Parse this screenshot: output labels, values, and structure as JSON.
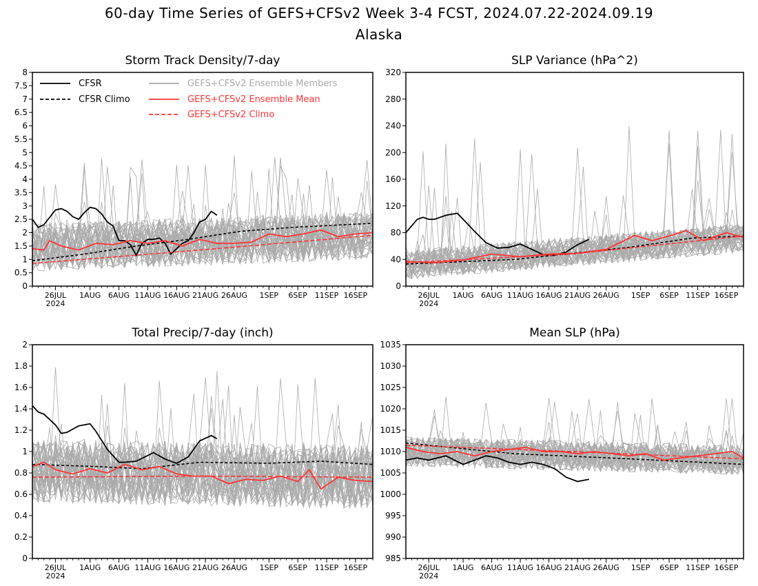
{
  "header": {
    "title_line1": "60-day Time Series of GEFS+CFSv2 Week 3-4 FCST, 2024.07.22-2024.09.19",
    "title_line2": "Alaska"
  },
  "colors": {
    "cfsr": "#000000",
    "members": "#aaaaaa",
    "ens_mean": "#ff3333"
  },
  "legend": {
    "cfsr": "CFSR",
    "cfsr_climo": "CFSR Climo",
    "members": "GEFS+CFSv2 Ensemble Members",
    "ens_mean": "GEFS+CFSv2 Ensemble Mean",
    "ens_climo": "GEFS+CFSv2 Climo"
  },
  "x_axis": {
    "start": "2024-07-22",
    "end": "2024-09-19",
    "ticks": [
      {
        "date": "2024-07-26",
        "label": "26JUL",
        "sub": "2024"
      },
      {
        "date": "2024-08-01",
        "label": "1AUG"
      },
      {
        "date": "2024-08-06",
        "label": "6AUG"
      },
      {
        "date": "2024-08-11",
        "label": "11AUG"
      },
      {
        "date": "2024-08-16",
        "label": "16AUG"
      },
      {
        "date": "2024-08-21",
        "label": "21AUG"
      },
      {
        "date": "2024-08-26",
        "label": "26AUG"
      },
      {
        "date": "2024-09-01",
        "label": "1SEP"
      },
      {
        "date": "2024-09-06",
        "label": "6SEP"
      },
      {
        "date": "2024-09-11",
        "label": "11SEP"
      },
      {
        "date": "2024-09-16",
        "label": "16SEP"
      }
    ]
  },
  "chart_data": [
    {
      "type": "line",
      "title": "Storm Track Density/7-day",
      "ylim": [
        0,
        8
      ],
      "yticks": [
        "0",
        "0.5",
        "1",
        "1.5",
        "2",
        "2.5",
        "3",
        "3.5",
        "4",
        "4.5",
        "5",
        "5.5",
        "6",
        "6.5",
        "7",
        "7.5",
        "8"
      ],
      "has_legend": true,
      "members_envelope": {
        "mean": [
          1.45,
          1.9
        ],
        "spread": 0.9,
        "max": 4.9
      },
      "series": [
        {
          "name": "CFSR",
          "x": [
            "2024-07-22",
            "2024-07-23",
            "2024-07-24",
            "2024-07-26",
            "2024-07-27",
            "2024-07-28",
            "2024-07-29",
            "2024-07-30",
            "2024-07-31",
            "2024-08-01",
            "2024-08-02",
            "2024-08-03",
            "2024-08-04",
            "2024-08-05",
            "2024-08-06",
            "2024-08-07",
            "2024-08-08",
            "2024-08-09",
            "2024-08-10",
            "2024-08-11",
            "2024-08-12",
            "2024-08-13",
            "2024-08-14",
            "2024-08-15",
            "2024-08-16",
            "2024-08-17",
            "2024-08-18",
            "2024-08-19",
            "2024-08-20",
            "2024-08-21",
            "2024-08-22",
            "2024-08-23"
          ],
          "y": [
            2.5,
            2.2,
            2.3,
            2.85,
            2.9,
            2.8,
            2.6,
            2.5,
            2.75,
            2.95,
            2.9,
            2.7,
            2.4,
            2.25,
            1.7,
            1.7,
            1.55,
            1.15,
            1.6,
            1.75,
            1.75,
            1.8,
            1.6,
            1.2,
            1.4,
            1.6,
            1.7,
            2.0,
            2.4,
            2.5,
            2.8,
            2.65
          ]
        },
        {
          "name": "CFSR Climo",
          "x": [
            "2024-07-22",
            "2024-07-31",
            "2024-08-09",
            "2024-08-18",
            "2024-08-27",
            "2024-09-05",
            "2024-09-19"
          ],
          "y": [
            0.95,
            1.2,
            1.5,
            1.75,
            2.05,
            2.2,
            2.35
          ]
        },
        {
          "name": "GEFS+CFSv2 Ensemble Mean",
          "x": [
            "2024-07-22",
            "2024-07-24",
            "2024-07-25",
            "2024-07-27",
            "2024-07-30",
            "2024-08-02",
            "2024-08-05",
            "2024-08-08",
            "2024-08-11",
            "2024-08-14",
            "2024-08-17",
            "2024-08-20",
            "2024-08-23",
            "2024-08-26",
            "2024-08-29",
            "2024-09-01",
            "2024-09-04",
            "2024-09-07",
            "2024-09-10",
            "2024-09-13",
            "2024-09-16",
            "2024-09-19"
          ],
          "y": [
            1.4,
            1.35,
            1.7,
            1.5,
            1.35,
            1.6,
            1.55,
            1.7,
            1.6,
            1.7,
            1.5,
            1.75,
            1.6,
            1.6,
            1.65,
            1.95,
            1.85,
            1.95,
            2.1,
            1.85,
            1.95,
            2.0
          ]
        },
        {
          "name": "GEFS+CFSv2 Climo",
          "x": [
            "2024-07-22",
            "2024-08-20",
            "2024-09-19"
          ],
          "y": [
            0.85,
            1.35,
            1.9
          ]
        }
      ]
    },
    {
      "type": "line",
      "title": "SLP Variance (hPa^2)",
      "ylim": [
        0,
        320
      ],
      "yticks": [
        "0",
        "40",
        "80",
        "120",
        "160",
        "200",
        "240",
        "280",
        "320"
      ],
      "has_legend": false,
      "members_envelope": {
        "mean": [
          32,
          72
        ],
        "spread": 22,
        "max": 240
      },
      "series": [
        {
          "name": "CFSR",
          "x": [
            "2024-07-22",
            "2024-07-24",
            "2024-07-25",
            "2024-07-26",
            "2024-07-27",
            "2024-07-29",
            "2024-07-31",
            "2024-08-01",
            "2024-08-03",
            "2024-08-05",
            "2024-08-07",
            "2024-08-09",
            "2024-08-11",
            "2024-08-13",
            "2024-08-15",
            "2024-08-17",
            "2024-08-19",
            "2024-08-21",
            "2024-08-23"
          ],
          "y": [
            80,
            100,
            103,
            100,
            100,
            106,
            109,
            100,
            82,
            65,
            57,
            58,
            63,
            55,
            47,
            46,
            51,
            62,
            70
          ]
        },
        {
          "name": "CFSR Climo",
          "x": [
            "2024-07-22",
            "2024-08-10",
            "2024-08-30",
            "2024-09-10",
            "2024-09-19"
          ],
          "y": [
            33,
            40,
            58,
            72,
            75
          ]
        },
        {
          "name": "GEFS+CFSv2 Ensemble Mean",
          "x": [
            "2024-07-22",
            "2024-07-27",
            "2024-08-01",
            "2024-08-06",
            "2024-08-11",
            "2024-08-16",
            "2024-08-21",
            "2024-08-26",
            "2024-08-31",
            "2024-09-03",
            "2024-09-06",
            "2024-09-09",
            "2024-09-12",
            "2024-09-16",
            "2024-09-19"
          ],
          "y": [
            37,
            35,
            39,
            48,
            44,
            48,
            49,
            55,
            76,
            68,
            75,
            83,
            68,
            80,
            73
          ]
        },
        {
          "name": "GEFS+CFSv2 Climo",
          "x": [
            "2024-07-22",
            "2024-08-20",
            "2024-09-19"
          ],
          "y": [
            35,
            48,
            75
          ]
        }
      ]
    },
    {
      "type": "line",
      "title": "Total Precip/7-day (inch)",
      "ylim": [
        0,
        2
      ],
      "yticks": [
        "0",
        "0.2",
        "0.4",
        "0.6",
        "0.8",
        "1",
        "1.2",
        "1.4",
        "1.6",
        "1.8",
        "2"
      ],
      "has_legend": false,
      "members_envelope": {
        "mean": [
          0.82,
          0.76
        ],
        "spread": 0.3,
        "max": 1.8
      },
      "series": [
        {
          "name": "CFSR",
          "x": [
            "2024-07-22",
            "2024-07-23",
            "2024-07-24",
            "2024-07-26",
            "2024-07-27",
            "2024-07-28",
            "2024-07-30",
            "2024-08-01",
            "2024-08-02",
            "2024-08-04",
            "2024-08-06",
            "2024-08-07",
            "2024-08-09",
            "2024-08-12",
            "2024-08-14",
            "2024-08-16",
            "2024-08-18",
            "2024-08-20",
            "2024-08-22",
            "2024-08-23"
          ],
          "y": [
            1.43,
            1.37,
            1.35,
            1.25,
            1.17,
            1.18,
            1.24,
            1.26,
            1.19,
            1.02,
            0.9,
            0.9,
            0.91,
            0.99,
            0.93,
            0.89,
            0.95,
            1.1,
            1.15,
            1.12
          ]
        },
        {
          "name": "CFSR Climo",
          "x": [
            "2024-07-22",
            "2024-08-02",
            "2024-08-10",
            "2024-08-20",
            "2024-09-01",
            "2024-09-10",
            "2024-09-19"
          ],
          "y": [
            0.88,
            0.86,
            0.84,
            0.9,
            0.89,
            0.91,
            0.88
          ]
        },
        {
          "name": "GEFS+CFSv2 Ensemble Mean",
          "x": [
            "2024-07-22",
            "2024-07-24",
            "2024-07-26",
            "2024-07-29",
            "2024-08-01",
            "2024-08-04",
            "2024-08-07",
            "2024-08-10",
            "2024-08-13",
            "2024-08-16",
            "2024-08-19",
            "2024-08-22",
            "2024-08-25",
            "2024-08-28",
            "2024-08-31",
            "2024-09-03",
            "2024-09-06",
            "2024-09-08",
            "2024-09-10",
            "2024-09-13",
            "2024-09-16",
            "2024-09-19"
          ],
          "y": [
            0.86,
            0.9,
            0.83,
            0.79,
            0.84,
            0.8,
            0.88,
            0.83,
            0.86,
            0.79,
            0.77,
            0.77,
            0.7,
            0.74,
            0.73,
            0.77,
            0.72,
            0.83,
            0.65,
            0.76,
            0.73,
            0.72
          ]
        },
        {
          "name": "GEFS+CFSv2 Climo",
          "x": [
            "2024-07-22",
            "2024-08-20",
            "2024-09-19"
          ],
          "y": [
            0.76,
            0.77,
            0.76
          ]
        }
      ]
    },
    {
      "type": "line",
      "title": "Mean SLP (hPa)",
      "ylim": [
        985,
        1035
      ],
      "yticks": [
        "985",
        "990",
        "995",
        "1000",
        "1005",
        "1010",
        "1015",
        "1020",
        "1025",
        "1030",
        "1035"
      ],
      "has_legend": false,
      "members_envelope": {
        "mean": [
          1010,
          1008
        ],
        "spread": 3.5,
        "max": 1023
      },
      "series": [
        {
          "name": "CFSR",
          "x": [
            "2024-07-22",
            "2024-07-24",
            "2024-07-26",
            "2024-07-29",
            "2024-08-01",
            "2024-08-03",
            "2024-08-05",
            "2024-08-07",
            "2024-08-09",
            "2024-08-11",
            "2024-08-13",
            "2024-08-15",
            "2024-08-17",
            "2024-08-19",
            "2024-08-21",
            "2024-08-23"
          ],
          "y": [
            1008,
            1008.5,
            1008,
            1009,
            1007,
            1008,
            1009,
            1008.5,
            1007.5,
            1007,
            1007.5,
            1007,
            1006,
            1004,
            1003,
            1003.5
          ]
        },
        {
          "name": "CFSR Climo",
          "x": [
            "2024-07-22",
            "2024-08-10",
            "2024-08-30",
            "2024-09-19"
          ],
          "y": [
            1012,
            1009.5,
            1008.3,
            1007
          ]
        },
        {
          "name": "GEFS+CFSv2 Ensemble Mean",
          "x": [
            "2024-07-22",
            "2024-07-25",
            "2024-07-28",
            "2024-07-31",
            "2024-08-03",
            "2024-08-06",
            "2024-08-09",
            "2024-08-12",
            "2024-08-15",
            "2024-08-18",
            "2024-08-21",
            "2024-08-24",
            "2024-08-27",
            "2024-08-30",
            "2024-09-02",
            "2024-09-05",
            "2024-09-08",
            "2024-09-11",
            "2024-09-14",
            "2024-09-17",
            "2024-09-19"
          ],
          "y": [
            1011,
            1010,
            1009.5,
            1010,
            1009,
            1010,
            1010.5,
            1011,
            1010,
            1010,
            1009.5,
            1010,
            1009.5,
            1009,
            1009.5,
            1008,
            1008.5,
            1009,
            1009.5,
            1010,
            1008.5
          ]
        },
        {
          "name": "GEFS+CFSv2 Climo",
          "x": [
            "2024-07-22",
            "2024-08-20",
            "2024-09-19"
          ],
          "y": [
            1011.5,
            1010,
            1008.3
          ]
        }
      ]
    }
  ]
}
